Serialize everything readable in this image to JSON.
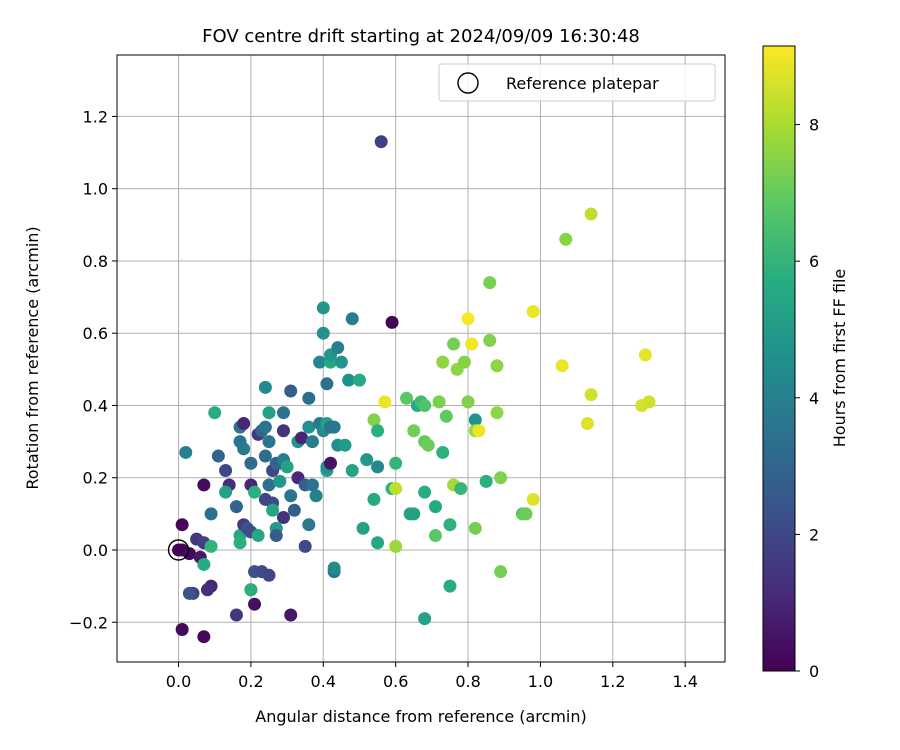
{
  "chart_data": {
    "type": "scatter",
    "title": "FOV centre drift starting at 2024/09/09 16:30:48",
    "xlabel": "Angular distance from reference (arcmin)",
    "ylabel": "Rotation from reference (arcmin)",
    "xlim": [
      -0.17,
      1.51
    ],
    "ylim": [
      -0.31,
      1.37
    ],
    "xticks": [
      0.0,
      0.2,
      0.4,
      0.6,
      0.8,
      1.0,
      1.2,
      1.4
    ],
    "xtick_labels": [
      "0.0",
      "0.2",
      "0.4",
      "0.6",
      "0.8",
      "1.0",
      "1.2",
      "1.4"
    ],
    "yticks": [
      -0.2,
      0.0,
      0.2,
      0.4,
      0.6,
      0.8,
      1.0,
      1.2
    ],
    "ytick_labels": [
      "−0.2",
      "0.0",
      "0.2",
      "0.4",
      "0.6",
      "0.8",
      "1.0",
      "1.2"
    ],
    "grid": true,
    "legend": {
      "placement": "top-right",
      "label": "Reference platepar"
    },
    "reference_point": {
      "x": 0.0,
      "y": 0.0
    },
    "colorbar": {
      "label": "Hours from first FF file",
      "min": 0,
      "max": 9.15,
      "ticks": [
        0,
        2,
        4,
        6,
        8
      ],
      "tick_labels": [
        "0",
        "2",
        "4",
        "6",
        "8"
      ],
      "colormap": "viridis"
    },
    "points": [
      [
        0.0,
        0.0,
        0.05
      ],
      [
        0.01,
        -0.0,
        0.1
      ],
      [
        0.03,
        -0.01,
        0.2
      ],
      [
        0.01,
        0.07,
        0.15
      ],
      [
        0.01,
        -0.22,
        0.2
      ],
      [
        0.07,
        -0.24,
        0.25
      ],
      [
        0.07,
        0.18,
        0.3
      ],
      [
        0.06,
        -0.02,
        0.6
      ],
      [
        0.09,
        -0.1,
        1.0
      ],
      [
        0.08,
        -0.11,
        1.2
      ],
      [
        0.05,
        0.03,
        1.5
      ],
      [
        0.07,
        0.02,
        1.7
      ],
      [
        0.04,
        -0.12,
        1.8
      ],
      [
        0.03,
        -0.12,
        2.4
      ],
      [
        0.02,
        0.27,
        4.0
      ],
      [
        0.07,
        -0.04,
        5.6
      ],
      [
        0.09,
        0.01,
        6.0
      ],
      [
        0.1,
        0.38,
        5.7
      ],
      [
        0.09,
        0.1,
        3.4
      ],
      [
        0.11,
        0.26,
        3.0
      ],
      [
        0.13,
        0.22,
        2.0
      ],
      [
        0.14,
        0.18,
        1.2
      ],
      [
        0.13,
        0.16,
        5.3
      ],
      [
        0.16,
        -0.18,
        1.5
      ],
      [
        0.17,
        0.04,
        5.5
      ],
      [
        0.16,
        0.12,
        3.0
      ],
      [
        0.17,
        0.34,
        3.5
      ],
      [
        0.17,
        0.3,
        3.6
      ],
      [
        0.18,
        0.28,
        3.8
      ],
      [
        0.18,
        0.35,
        1.0
      ],
      [
        0.18,
        0.07,
        1.6
      ],
      [
        0.19,
        0.06,
        2.3
      ],
      [
        0.17,
        0.02,
        5.8
      ],
      [
        0.2,
        0.18,
        1.0
      ],
      [
        0.21,
        0.16,
        5.8
      ],
      [
        0.2,
        0.24,
        3.2
      ],
      [
        0.2,
        0.05,
        2.1
      ],
      [
        0.21,
        -0.06,
        2.4
      ],
      [
        0.2,
        -0.11,
        2.4
      ],
      [
        0.2,
        -0.11,
        5.8
      ],
      [
        0.21,
        -0.15,
        0.4
      ],
      [
        0.22,
        0.04,
        5.5
      ],
      [
        0.23,
        -0.06,
        2.1
      ],
      [
        0.22,
        0.32,
        1.5
      ],
      [
        0.23,
        0.33,
        3.0
      ],
      [
        0.24,
        0.45,
        4.3
      ],
      [
        0.24,
        0.34,
        3.5
      ],
      [
        0.24,
        0.26,
        3.2
      ],
      [
        0.25,
        0.3,
        3.6
      ],
      [
        0.25,
        0.38,
        5.2
      ],
      [
        0.25,
        0.18,
        3.4
      ],
      [
        0.24,
        0.14,
        2.0
      ],
      [
        0.26,
        0.22,
        2.0
      ],
      [
        0.25,
        -0.07,
        2.0
      ],
      [
        0.26,
        0.13,
        2.1
      ],
      [
        0.27,
        0.24,
        3.0
      ],
      [
        0.27,
        0.06,
        5.0
      ],
      [
        0.27,
        0.04,
        2.7
      ],
      [
        0.26,
        0.11,
        5.4
      ],
      [
        0.28,
        0.19,
        4.9
      ],
      [
        0.28,
        0.24,
        2.9
      ],
      [
        0.29,
        0.38,
        3.5
      ],
      [
        0.29,
        0.33,
        1.3
      ],
      [
        0.29,
        0.09,
        1.3
      ],
      [
        0.29,
        0.25,
        3.9
      ],
      [
        0.3,
        0.23,
        5.3
      ],
      [
        0.31,
        0.15,
        3.6
      ],
      [
        0.31,
        -0.18,
        0.6
      ],
      [
        0.31,
        0.44,
        2.8
      ],
      [
        0.32,
        0.11,
        2.8
      ],
      [
        0.33,
        0.3,
        4.8
      ],
      [
        0.33,
        0.2,
        1.1
      ],
      [
        0.35,
        0.01,
        2.0
      ],
      [
        0.34,
        0.31,
        1.0
      ],
      [
        0.35,
        0.18,
        2.8
      ],
      [
        0.36,
        0.34,
        4.6
      ],
      [
        0.36,
        0.07,
        3.7
      ],
      [
        0.36,
        0.42,
        3.3
      ],
      [
        0.37,
        0.3,
        3.9
      ],
      [
        0.37,
        0.18,
        3.5
      ],
      [
        0.38,
        0.15,
        4.0
      ],
      [
        0.39,
        0.35,
        3.8
      ],
      [
        0.39,
        0.52,
        4.2
      ],
      [
        0.4,
        0.6,
        4.7
      ],
      [
        0.4,
        0.67,
        4.9
      ],
      [
        0.4,
        0.33,
        4.4
      ],
      [
        0.41,
        0.35,
        5.3
      ],
      [
        0.41,
        0.22,
        5.2
      ],
      [
        0.41,
        0.46,
        3.4
      ],
      [
        0.41,
        0.23,
        4.5
      ],
      [
        0.42,
        0.34,
        3.5
      ],
      [
        0.42,
        0.52,
        5.5
      ],
      [
        0.42,
        0.54,
        4.8
      ],
      [
        0.42,
        0.24,
        0.5
      ],
      [
        0.43,
        -0.06,
        3.6
      ],
      [
        0.43,
        0.34,
        3.7
      ],
      [
        0.43,
        -0.05,
        4.4
      ],
      [
        0.44,
        0.56,
        3.9
      ],
      [
        0.44,
        0.29,
        4.5
      ],
      [
        0.45,
        0.52,
        4.8
      ],
      [
        0.46,
        0.29,
        5.0
      ],
      [
        0.47,
        0.47,
        4.6
      ],
      [
        0.48,
        0.64,
        3.9
      ],
      [
        0.48,
        0.22,
        5.3
      ],
      [
        0.5,
        0.47,
        5.6
      ],
      [
        0.51,
        0.06,
        5.3
      ],
      [
        0.52,
        0.25,
        4.9
      ],
      [
        0.54,
        0.14,
        5.6
      ],
      [
        0.55,
        0.23,
        4.3
      ],
      [
        0.54,
        0.36,
        7.4
      ],
      [
        0.55,
        0.33,
        5.8
      ],
      [
        0.55,
        0.02,
        5.5
      ],
      [
        0.56,
        1.13,
        1.8
      ],
      [
        0.57,
        0.41,
        8.9
      ],
      [
        0.59,
        0.17,
        5.8
      ],
      [
        0.6,
        0.17,
        8.3
      ],
      [
        0.59,
        0.63,
        0.1
      ],
      [
        0.6,
        0.24,
        6.0
      ],
      [
        0.6,
        0.01,
        7.8
      ],
      [
        0.63,
        0.42,
        6.8
      ],
      [
        0.64,
        0.1,
        5.4
      ],
      [
        0.65,
        0.1,
        5.2
      ],
      [
        0.65,
        0.33,
        7.2
      ],
      [
        0.66,
        0.4,
        5.6
      ],
      [
        0.67,
        0.41,
        6.3
      ],
      [
        0.68,
        0.16,
        5.7
      ],
      [
        0.68,
        -0.19,
        5.3
      ],
      [
        0.68,
        0.4,
        6.6
      ],
      [
        0.68,
        0.3,
        7.0
      ],
      [
        0.69,
        0.29,
        7.1
      ],
      [
        0.71,
        0.04,
        6.8
      ],
      [
        0.71,
        0.12,
        5.6
      ],
      [
        0.72,
        0.41,
        7.3
      ],
      [
        0.73,
        0.52,
        7.6
      ],
      [
        0.73,
        0.27,
        5.9
      ],
      [
        0.74,
        0.37,
        6.9
      ],
      [
        0.75,
        0.07,
        5.9
      ],
      [
        0.75,
        -0.1,
        5.7
      ],
      [
        0.76,
        0.57,
        7.2
      ],
      [
        0.76,
        0.18,
        7.9
      ],
      [
        0.77,
        0.5,
        7.6
      ],
      [
        0.78,
        0.17,
        6.1
      ],
      [
        0.79,
        0.52,
        7.5
      ],
      [
        0.8,
        0.41,
        7.4
      ],
      [
        0.8,
        0.64,
        9.1
      ],
      [
        0.81,
        0.57,
        9.0
      ],
      [
        0.82,
        0.36,
        4.7
      ],
      [
        0.82,
        0.06,
        7.2
      ],
      [
        0.82,
        0.33,
        7.7
      ],
      [
        0.83,
        0.33,
        8.9
      ],
      [
        0.85,
        0.19,
        5.8
      ],
      [
        0.86,
        0.58,
        7.4
      ],
      [
        0.86,
        0.74,
        7.3
      ],
      [
        0.88,
        0.51,
        7.6
      ],
      [
        0.88,
        0.38,
        7.6
      ],
      [
        0.89,
        0.2,
        7.4
      ],
      [
        0.89,
        -0.06,
        7.2
      ],
      [
        0.95,
        0.1,
        6.9
      ],
      [
        0.96,
        0.1,
        7.1
      ],
      [
        0.98,
        0.66,
        8.9
      ],
      [
        0.98,
        0.14,
        8.7
      ],
      [
        1.07,
        0.86,
        7.5
      ],
      [
        1.06,
        0.51,
        8.9
      ],
      [
        1.13,
        0.35,
        8.7
      ],
      [
        1.14,
        0.93,
        8.3
      ],
      [
        1.14,
        0.43,
        8.5
      ],
      [
        1.28,
        0.4,
        8.6
      ],
      [
        1.29,
        0.54,
        8.8
      ],
      [
        1.3,
        0.41,
        8.5
      ]
    ]
  }
}
